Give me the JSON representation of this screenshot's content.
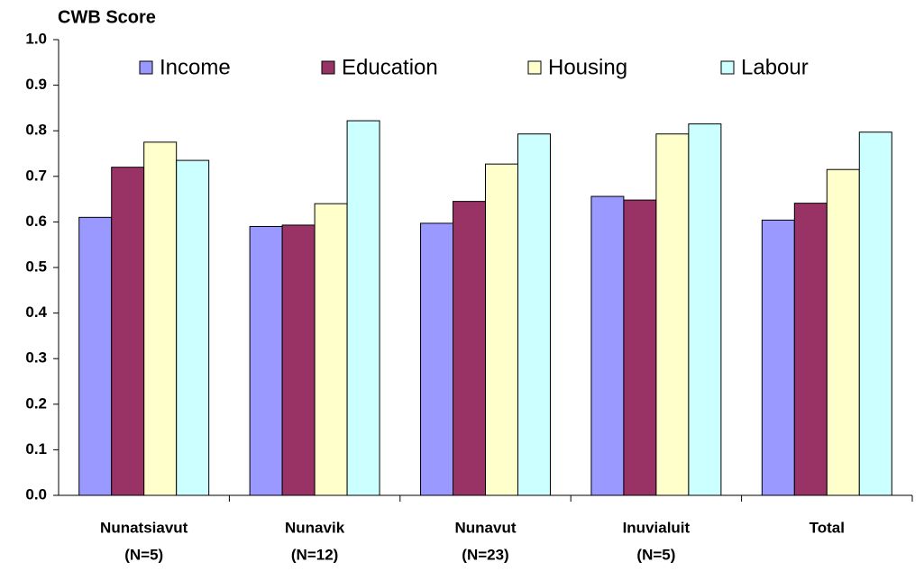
{
  "chart_data": {
    "type": "bar",
    "title": "CWB Score",
    "categories": [
      [
        "Nunatsiavut",
        "(N=5)"
      ],
      [
        "Nunavik",
        "(N=12)"
      ],
      [
        "Nunavut",
        "(N=23)"
      ],
      [
        "Inuvialuit",
        "(N=5)"
      ],
      [
        "Total"
      ]
    ],
    "series": [
      {
        "name": "Income",
        "color": "#9999ff",
        "values": [
          0.61,
          0.59,
          0.597,
          0.656,
          0.604
        ]
      },
      {
        "name": "Education",
        "color": "#993366",
        "values": [
          0.72,
          0.593,
          0.645,
          0.648,
          0.641
        ]
      },
      {
        "name": "Housing",
        "color": "#ffffcc",
        "values": [
          0.775,
          0.64,
          0.727,
          0.793,
          0.715
        ]
      },
      {
        "name": "Labour",
        "color": "#ccffff",
        "values": [
          0.735,
          0.822,
          0.793,
          0.815,
          0.797
        ]
      }
    ],
    "ylim": [
      0,
      1
    ],
    "yticks": [
      {
        "value": 0,
        "label": "0.0"
      },
      0.1,
      0.2,
      0.3,
      0.4,
      0.5,
      0.6,
      0.7,
      0.8,
      0.9,
      {
        "value": 1,
        "label": "1.0"
      }
    ],
    "grid": false,
    "legend": "top"
  }
}
